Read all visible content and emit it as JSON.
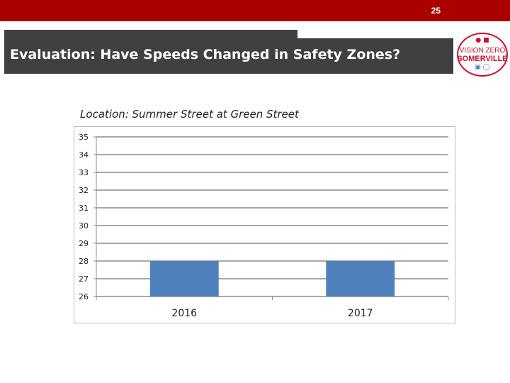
{
  "header": {
    "page_number": "25",
    "title": "Evaluation: Have Speeds Changed in Safety Zones?"
  },
  "logo": {
    "line1": "VISION ZERO",
    "line2": "SOMERVILLE",
    "icons": [
      "pedestrian-icon",
      "car-icon",
      "bus-icon",
      "bicycle-icon"
    ]
  },
  "colors": {
    "brand_red": "#aa0000",
    "title_bg": "#404040",
    "bar_fill": "#4f81bd"
  },
  "chart_data": {
    "type": "bar",
    "title": "Location: Summer Street at Green Street",
    "categories": [
      "2016",
      "2017"
    ],
    "values": [
      28,
      28
    ],
    "ylim": [
      26,
      35
    ],
    "yticks": [
      26,
      27,
      28,
      29,
      30,
      31,
      32,
      33,
      34,
      35
    ],
    "xlabel": "",
    "ylabel": "",
    "grid": true,
    "legend": "none"
  }
}
